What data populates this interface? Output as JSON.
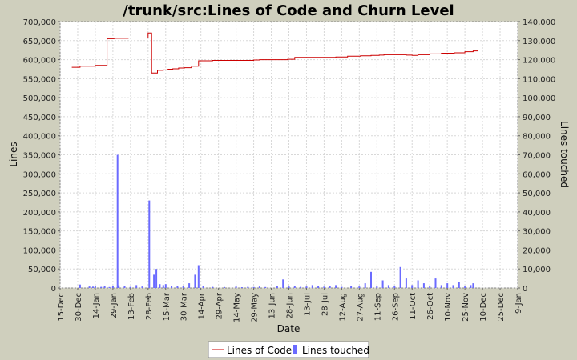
{
  "chart_data": {
    "type": "line",
    "title": "/trunk/src:Lines of Code and Churn Level",
    "xlabel": "Date",
    "ylabel_left": "Lines",
    "ylabel_right": "Lines touched",
    "x_tick_labels": [
      "15-Dec",
      "30-Dec",
      "14-Jan",
      "29-Jan",
      "13-Feb",
      "28-Feb",
      "15-Mar",
      "30-Mar",
      "14-Apr",
      "29-Apr",
      "14-May",
      "29-May",
      "13-Jun",
      "28-Jun",
      "13-Jul",
      "28-Jul",
      "12-Aug",
      "27-Aug",
      "11-Sep",
      "26-Sep",
      "11-Oct",
      "26-Oct",
      "10-Nov",
      "25-Nov",
      "10-Dec",
      "25-Dec",
      "9-Jan"
    ],
    "y_left_ticks": [
      "0",
      "50,000",
      "100,000",
      "150,000",
      "200,000",
      "250,000",
      "300,000",
      "350,000",
      "400,000",
      "450,000",
      "500,000",
      "550,000",
      "600,000",
      "650,000",
      "700,000"
    ],
    "y_right_ticks": [
      "0",
      "10,000",
      "20,000",
      "30,000",
      "40,000",
      "50,000",
      "60,000",
      "70,000",
      "80,000",
      "90,000",
      "100,000",
      "110,000",
      "120,000",
      "130,000",
      "140,000"
    ],
    "ylim_left": [
      0,
      700000
    ],
    "ylim_right": [
      0,
      140000
    ],
    "x_range_days": [
      0,
      390
    ],
    "grid": true,
    "legend_position": "bottom",
    "series": [
      {
        "name": "Lines of Code",
        "axis": "left",
        "color": "#cc0000",
        "style": "step",
        "x": [
          10,
          17,
          27,
          30,
          40,
          45,
          46,
          49,
          50,
          53,
          58,
          62,
          63,
          75,
          78,
          83,
          88,
          92,
          96,
          101,
          103,
          106,
          108,
          112,
          118,
          130,
          135,
          145,
          154,
          164,
          165,
          170,
          180,
          193,
          194,
          200,
          214,
          235,
          245,
          255,
          256,
          265,
          272,
          276,
          280,
          295,
          300,
          305,
          315,
          325,
          332,
          336,
          345,
          352,
          356
        ],
        "y": [
          580000,
          583000,
          583000,
          585000,
          655000,
          655000,
          656000,
          656000,
          656000,
          656000,
          657000,
          657000,
          657000,
          670000,
          565000,
          572000,
          573000,
          575000,
          576000,
          578000,
          578000,
          579000,
          579000,
          583000,
          597000,
          598000,
          598000,
          598000,
          598000,
          598000,
          599000,
          600000,
          600000,
          600000,
          601000,
          606000,
          606000,
          607000,
          609000,
          609000,
          610000,
          611000,
          612000,
          613000,
          613000,
          612000,
          611000,
          613000,
          615000,
          617000,
          617000,
          618000,
          621000,
          623000,
          625000
        ]
      },
      {
        "name": "Lines touched",
        "axis": "right",
        "color": "#6b6bff",
        "style": "bar",
        "x": [
          17,
          25,
          28,
          30,
          35,
          38,
          42,
          45,
          49,
          50,
          55,
          60,
          65,
          70,
          76,
          80,
          82,
          85,
          88,
          90,
          95,
          100,
          105,
          110,
          115,
          118,
          122,
          130,
          140,
          150,
          155,
          160,
          165,
          170,
          175,
          185,
          190,
          195,
          200,
          205,
          210,
          215,
          220,
          225,
          230,
          235,
          240,
          248,
          255,
          260,
          265,
          270,
          275,
          280,
          285,
          290,
          295,
          300,
          305,
          310,
          315,
          320,
          325,
          330,
          335,
          340,
          345,
          350,
          352
        ],
        "y": [
          1800,
          800,
          700,
          1200,
          600,
          1000,
          500,
          900,
          70000,
          1400,
          900,
          600,
          1500,
          800,
          46000,
          7000,
          10000,
          2000,
          1500,
          2000,
          1200,
          1000,
          1200,
          2500,
          7000,
          12000,
          1000,
          600,
          500,
          800,
          400,
          600,
          500,
          800,
          500,
          1000,
          4500,
          800,
          1200,
          600,
          800,
          1500,
          900,
          700,
          1000,
          1500,
          600,
          1200,
          800,
          2500,
          8500,
          1200,
          4000,
          1500,
          1000,
          11000,
          5000,
          1500,
          4000,
          2500,
          1000,
          5000,
          1500,
          2500,
          1500,
          3000,
          800,
          1500,
          2500
        ]
      }
    ]
  }
}
